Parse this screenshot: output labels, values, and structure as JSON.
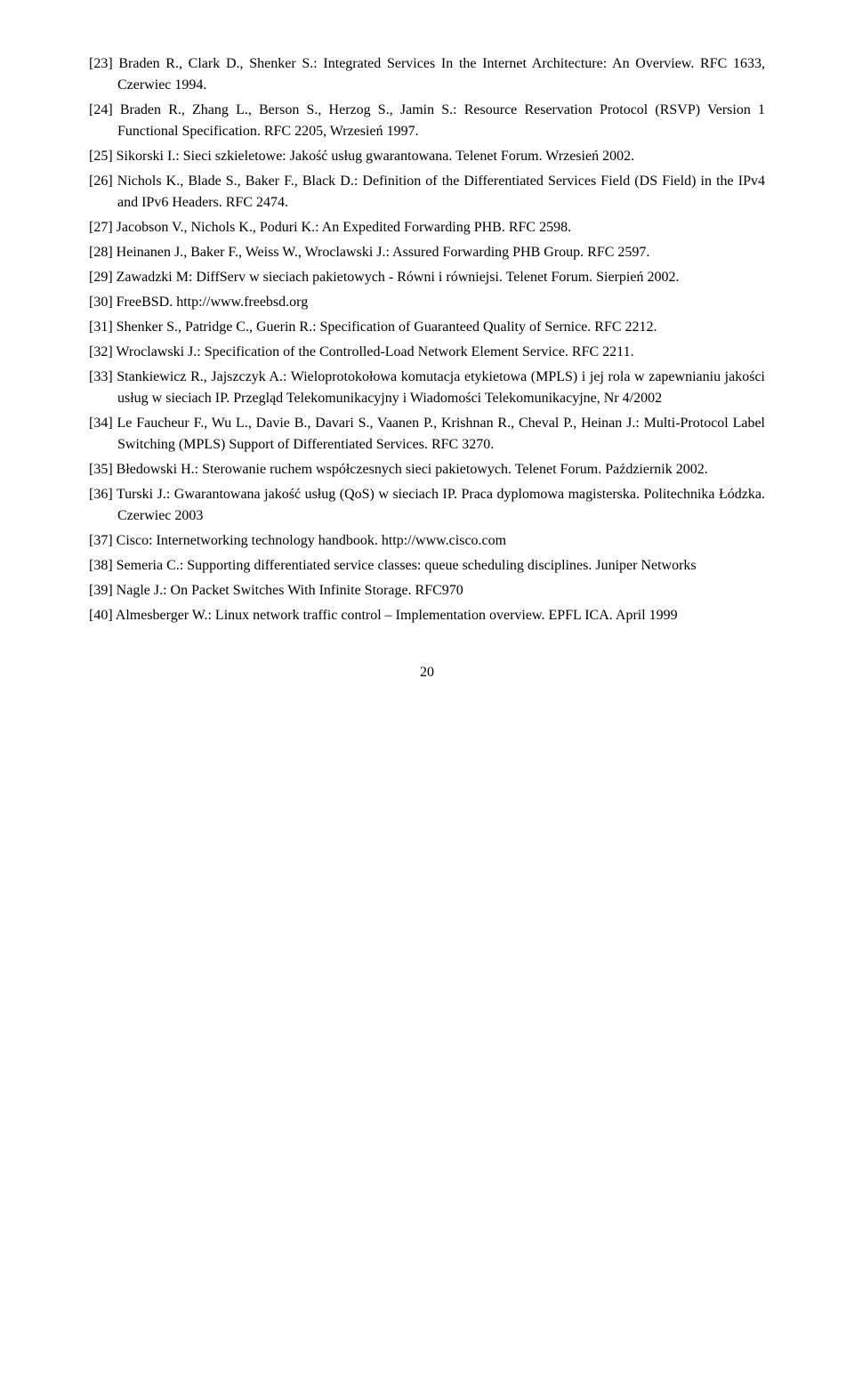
{
  "references": [
    {
      "num": "[23]",
      "text": "Braden R., Clark D., Shenker S.: Integrated Services In the Internet Architecture: An Overview. RFC 1633, Czerwiec 1994."
    },
    {
      "num": "[24]",
      "text": "Braden R., Zhang L., Berson S., Herzog S., Jamin S.: Resource Reservation Protocol (RSVP) Version 1 Functional Specification. RFC 2205, Wrzesień 1997."
    },
    {
      "num": "[25]",
      "text": "Sikorski I.: Sieci szkieletowe: Jakość usług gwarantowana. Telenet Forum. Wrzesień 2002."
    },
    {
      "num": "[26]",
      "text": "Nichols K., Blade S., Baker F., Black D.: Definition of the Differentiated Services Field (DS Field) in the IPv4 and IPv6 Headers. RFC 2474."
    },
    {
      "num": "[27]",
      "text": "Jacobson V., Nichols K., Poduri K.: An Expedited Forwarding PHB. RFC 2598."
    },
    {
      "num": "[28]",
      "text": "Heinanen J., Baker F., Weiss W., Wroclawski J.: Assured Forwarding PHB Group. RFC 2597."
    },
    {
      "num": "[29]",
      "text": "Zawadzki M: DiffServ w sieciach pakietowych - Równi i równiejsi. Telenet Forum. Sierpień 2002."
    },
    {
      "num": "[30]",
      "text": "FreeBSD. http://www.freebsd.org"
    },
    {
      "num": "[31]",
      "text": "Shenker S., Patridge C., Guerin R.: Specification of Guaranteed Quality of Sernice. RFC 2212."
    },
    {
      "num": "[32]",
      "text": "Wroclawski J.: Specification of the Controlled-Load Network Element Service. RFC 2211."
    },
    {
      "num": "[33]",
      "text": "Stankiewicz R., Jajszczyk A.: Wieloprotokołowa komutacja etykietowa (MPLS) i jej rola w zapewnianiu jakości usług w sieciach IP. Przegląd Telekomunikacyjny i Wiadomości Telekomunikacyjne, Nr 4/2002"
    },
    {
      "num": "[34]",
      "text": "Le Faucheur F., Wu L., Davie B., Davari S., Vaanen P., Krishnan R., Cheval P., Heinan J.: Multi-Protocol Label Switching (MPLS) Support of Differentiated Services. RFC 3270."
    },
    {
      "num": "[35]",
      "text": "Błedowski H.: Sterowanie ruchem współczesnych sieci pakietowych. Telenet Forum. Październik 2002."
    },
    {
      "num": "[36]",
      "text": "Turski J.: Gwarantowana jakość usług (QoS) w sieciach IP. Praca dyplomowa magisterska. Politechnika Łódzka. Czerwiec 2003"
    },
    {
      "num": "[37]",
      "text": "Cisco: Internetworking technology handbook. http://www.cisco.com"
    },
    {
      "num": "[38]",
      "text": "Semeria C.: Supporting differentiated service classes: queue scheduling disciplines. Juniper Networks"
    },
    {
      "num": "[39]",
      "text": "Nagle J.: On Packet Switches With Infinite Storage. RFC970"
    },
    {
      "num": "[40]",
      "text": "Almesberger W.: Linux network traffic control – Implementation overview. EPFL ICA. April 1999"
    }
  ],
  "page_number": "20"
}
